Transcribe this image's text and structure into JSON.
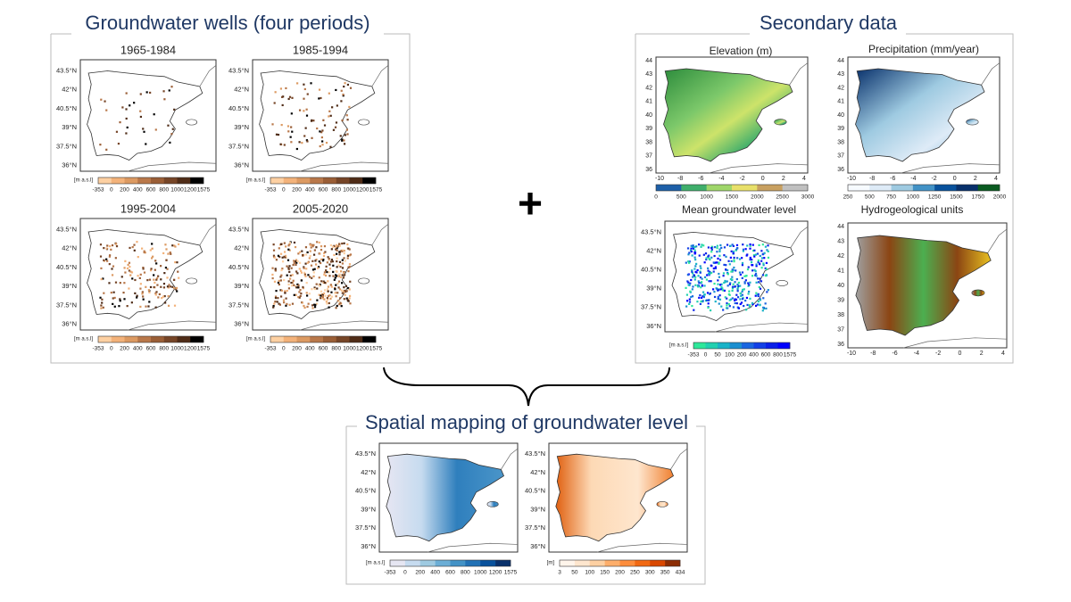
{
  "wells": {
    "title": "Groundwater wells (four periods)",
    "panels": [
      {
        "title": "1965-1984"
      },
      {
        "title": "1985-1994"
      },
      {
        "title": "1995-2004"
      },
      {
        "title": "2005-2020"
      }
    ],
    "lat_labels": [
      "43.5°N",
      "42°N",
      "40.5°N",
      "39°N",
      "37.5°N",
      "36°N"
    ],
    "colorbar": {
      "unit": "[m a.s.l]",
      "ticks": [
        "-353",
        "0",
        "200",
        "400",
        "600",
        "800",
        "1000",
        "1200",
        "1575"
      ]
    }
  },
  "plus": "+",
  "secondary": {
    "title": "Secondary data",
    "elevation": {
      "title": "Elevation (m)",
      "y_labels": [
        "44",
        "43",
        "42",
        "41",
        "40",
        "39",
        "38",
        "37",
        "36"
      ],
      "x_labels": [
        "-10",
        "-8",
        "-6",
        "-4",
        "-2",
        "0",
        "2",
        "4"
      ],
      "colorbar_ticks": [
        "0",
        "500",
        "1000",
        "1500",
        "2000",
        "2500",
        "3000"
      ]
    },
    "precipitation": {
      "title": "Precipitation  (mm/year)",
      "y_labels": [
        "44",
        "43",
        "42",
        "41",
        "40",
        "39",
        "38",
        "37",
        "36"
      ],
      "x_labels": [
        "-10",
        "-8",
        "-6",
        "-4",
        "-2",
        "0",
        "2",
        "4"
      ],
      "colorbar_ticks": [
        "250",
        "500",
        "750",
        "1000",
        "1250",
        "1500",
        "1750",
        "2000"
      ]
    },
    "mean_level": {
      "title": "Mean groundwater level",
      "lat_labels": [
        "43.5°N",
        "42°N",
        "40.5°N",
        "39°N",
        "37.5°N",
        "36°N"
      ],
      "unit": "[m a.s.l]",
      "colorbar_ticks": [
        "-353",
        "0",
        "50",
        "100",
        "200",
        "400",
        "600",
        "800",
        "1575"
      ]
    },
    "hydro_units": {
      "title": "Hydrogeological units",
      "y_labels": [
        "44",
        "43",
        "42",
        "41",
        "40",
        "39",
        "38",
        "37",
        "36"
      ],
      "x_labels": [
        "-10",
        "-8",
        "-6",
        "-4",
        "-2",
        "0",
        "2",
        "4"
      ]
    }
  },
  "mapping": {
    "title": "Spatial mapping of groundwater level",
    "lat_labels": [
      "43.5°N",
      "42°N",
      "40.5°N",
      "39°N",
      "37.5°N",
      "36°N"
    ],
    "panels": [
      {
        "unit": "[m a.s.l]",
        "ticks": [
          "-353",
          "0",
          "200",
          "400",
          "600",
          "800",
          "1000",
          "1200",
          "1575"
        ]
      },
      {
        "unit": "[m]",
        "ticks": [
          "3",
          "50",
          "100",
          "150",
          "200",
          "250",
          "300",
          "350",
          "434"
        ]
      }
    ]
  }
}
